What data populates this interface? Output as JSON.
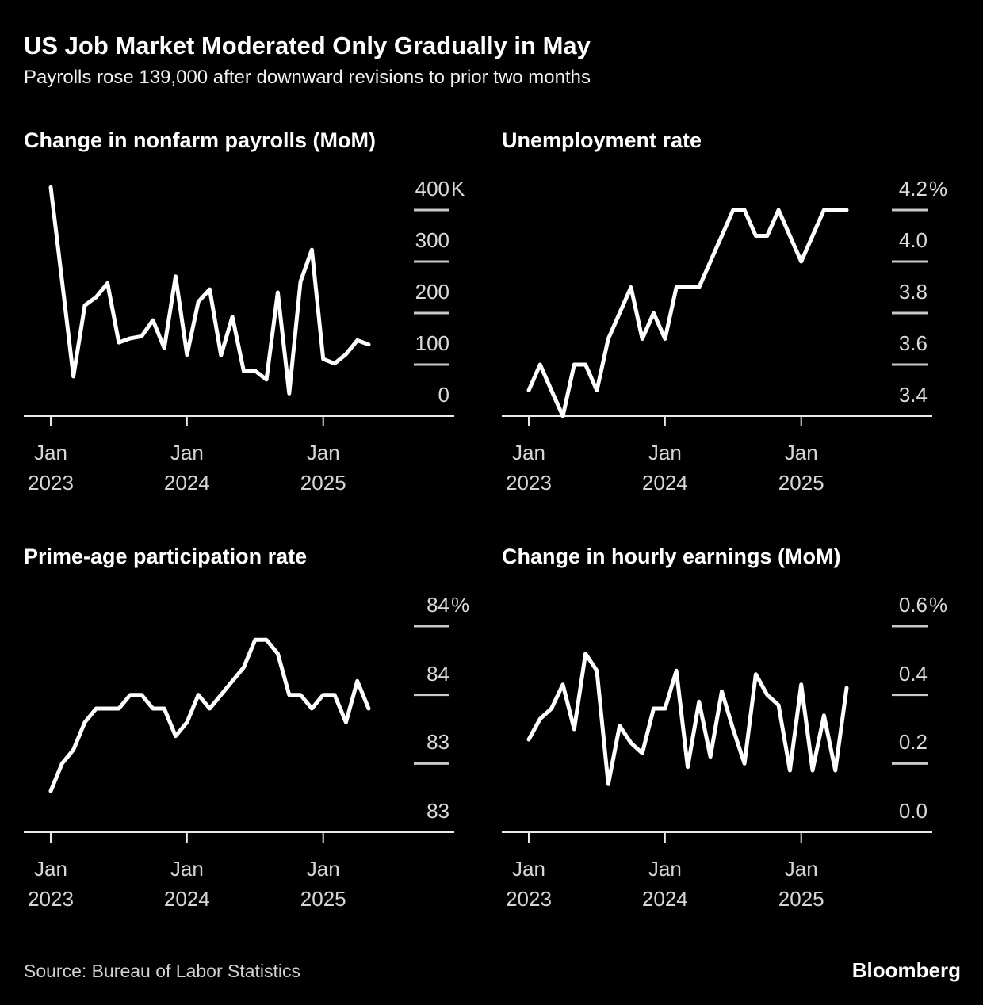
{
  "header": {
    "title": "US Job Market Moderated Only Gradually in May",
    "subtitle": "Payrolls rose 139,000 after downward revisions to prior two months"
  },
  "footer": {
    "source": "Source: Bureau of Labor Statistics",
    "brand": "Bloomberg"
  },
  "colors": {
    "background": "#000000",
    "line": "#ffffff",
    "axis": "#e8e8e8",
    "tick_dash": "#c9c9c9",
    "axis_label": "#d6d6d6"
  },
  "xticks": [
    {
      "top": "Jan",
      "bottom": "2023",
      "month_index": 0
    },
    {
      "top": "Jan",
      "bottom": "2024",
      "month_index": 12
    },
    {
      "top": "Jan",
      "bottom": "2025",
      "month_index": 24
    }
  ],
  "categories": [
    "Jan 2023",
    "Feb 2023",
    "Mar 2023",
    "Apr 2023",
    "May 2023",
    "Jun 2023",
    "Jul 2023",
    "Aug 2023",
    "Sep 2023",
    "Oct 2023",
    "Nov 2023",
    "Dec 2023",
    "Jan 2024",
    "Feb 2024",
    "Mar 2024",
    "Apr 2024",
    "May 2024",
    "Jun 2024",
    "Jul 2024",
    "Aug 2024",
    "Sep 2024",
    "Oct 2024",
    "Nov 2024",
    "Dec 2024",
    "Jan 2025",
    "Feb 2025",
    "Mar 2025",
    "Apr 2025",
    "May 2025"
  ],
  "chart_data": [
    {
      "id": "nonfarm-payrolls",
      "type": "line",
      "title": "Change in nonfarm payrolls (MoM)",
      "unit": "thousands of jobs",
      "ylim": [
        0,
        400
      ],
      "grid": "right-tick-dashes",
      "legend": "none",
      "yticks": [
        {
          "label": "400",
          "suffix": "K",
          "value": 400
        },
        {
          "label": "300",
          "suffix": "",
          "value": 300
        },
        {
          "label": "200",
          "suffix": "",
          "value": 200
        },
        {
          "label": "100",
          "suffix": "",
          "value": 100
        },
        {
          "label": "0",
          "suffix": "",
          "value": 0
        }
      ],
      "values": [
        444,
        262,
        77,
        215,
        231,
        258,
        143,
        151,
        155,
        186,
        132,
        271,
        119,
        222,
        246,
        118,
        193,
        87,
        88,
        71,
        240,
        44,
        261,
        323,
        111,
        102,
        120,
        147,
        139
      ]
    },
    {
      "id": "unemployment-rate",
      "type": "line",
      "title": "Unemployment rate",
      "unit": "percent",
      "ylim": [
        3.4,
        4.2
      ],
      "grid": "right-tick-dashes",
      "legend": "none",
      "yticks": [
        {
          "label": "4.2",
          "suffix": "%",
          "value": 4.2
        },
        {
          "label": "4.0",
          "suffix": "",
          "value": 4.0
        },
        {
          "label": "3.8",
          "suffix": "",
          "value": 3.8
        },
        {
          "label": "3.6",
          "suffix": "",
          "value": 3.6
        },
        {
          "label": "3.4",
          "suffix": "",
          "value": 3.4
        }
      ],
      "values": [
        3.5,
        3.6,
        3.5,
        3.4,
        3.6,
        3.6,
        3.5,
        3.7,
        3.8,
        3.9,
        3.7,
        3.8,
        3.7,
        3.9,
        3.9,
        3.9,
        4.0,
        4.1,
        4.2,
        4.2,
        4.1,
        4.1,
        4.2,
        4.1,
        4.0,
        4.1,
        4.2,
        4.2,
        4.2
      ]
    },
    {
      "id": "prime-age-participation",
      "type": "line",
      "title": "Prime-age participation rate",
      "unit": "percent",
      "ylim": [
        82.5,
        84.0
      ],
      "grid": "right-tick-dashes",
      "legend": "none",
      "yticks": [
        {
          "label": "84",
          "suffix": "%",
          "value": 84.0
        },
        {
          "label": "84",
          "suffix": "",
          "value": 83.5
        },
        {
          "label": "83",
          "suffix": "",
          "value": 83.0
        },
        {
          "label": "83",
          "suffix": "",
          "value": 82.5
        }
      ],
      "values": [
        82.8,
        83.0,
        83.1,
        83.3,
        83.4,
        83.4,
        83.4,
        83.5,
        83.5,
        83.4,
        83.4,
        83.2,
        83.3,
        83.5,
        83.4,
        83.5,
        83.6,
        83.7,
        83.9,
        83.9,
        83.8,
        83.5,
        83.5,
        83.4,
        83.5,
        83.5,
        83.3,
        83.6,
        83.4
      ]
    },
    {
      "id": "hourly-earnings",
      "type": "line",
      "title": "Change in hourly earnings (MoM)",
      "unit": "percent",
      "ylim": [
        0,
        0.6
      ],
      "grid": "right-tick-dashes",
      "legend": "none",
      "yticks": [
        {
          "label": "0.6",
          "suffix": "%",
          "value": 0.6
        },
        {
          "label": "0.4",
          "suffix": "",
          "value": 0.4
        },
        {
          "label": "0.2",
          "suffix": "",
          "value": 0.2
        },
        {
          "label": "0.0",
          "suffix": "",
          "value": 0.0
        }
      ],
      "values": [
        0.27,
        0.33,
        0.36,
        0.43,
        0.3,
        0.52,
        0.47,
        0.14,
        0.31,
        0.26,
        0.23,
        0.36,
        0.36,
        0.47,
        0.19,
        0.38,
        0.22,
        0.41,
        0.3,
        0.2,
        0.46,
        0.4,
        0.37,
        0.18,
        0.43,
        0.18,
        0.34,
        0.18,
        0.42
      ]
    }
  ]
}
